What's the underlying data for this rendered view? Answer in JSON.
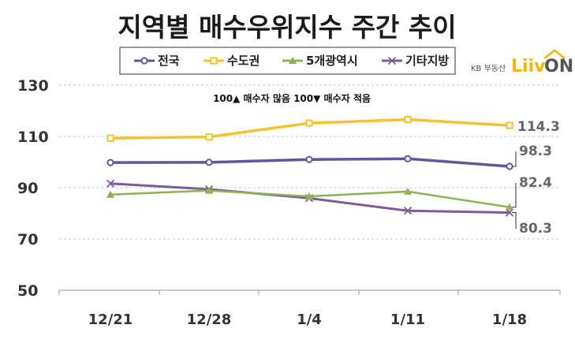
{
  "chart_data": {
    "type": "line",
    "title": "지역별 매수우위지수 주간 추이",
    "annotation": "100▲ 매수자 많음 100▼ 매수자 적음",
    "categories": [
      "12/21",
      "12/28",
      "1/4",
      "1/11",
      "1/18"
    ],
    "ylim": [
      50,
      130
    ],
    "yticks": [
      50,
      70,
      90,
      110,
      130
    ],
    "grid": true,
    "legend_position": "top",
    "series": [
      {
        "name": "전국",
        "color": "#5b5aa0",
        "marker": "circle",
        "values": [
          99.8,
          99.9,
          101.0,
          101.3,
          98.3
        ]
      },
      {
        "name": "수도권",
        "color": "#f5c232",
        "marker": "square",
        "values": [
          109.3,
          109.8,
          115.2,
          116.6,
          114.3
        ]
      },
      {
        "name": "5개광역시",
        "color": "#8db352",
        "marker": "triangle",
        "values": [
          87.3,
          88.9,
          86.6,
          88.5,
          82.4
        ]
      },
      {
        "name": "기타지방",
        "color": "#7d5c9a",
        "marker": "x",
        "values": [
          91.6,
          89.4,
          85.9,
          81.0,
          80.3
        ]
      }
    ],
    "end_labels": [
      "98.3",
      "114.3",
      "82.4",
      "80.3"
    ]
  },
  "logo": {
    "prefix": "KB 부동산",
    "brand_a": "Liiv",
    "brand_b": "ON",
    "colors": {
      "brand_a": "#f5b800",
      "brand_b": "#555555"
    }
  }
}
